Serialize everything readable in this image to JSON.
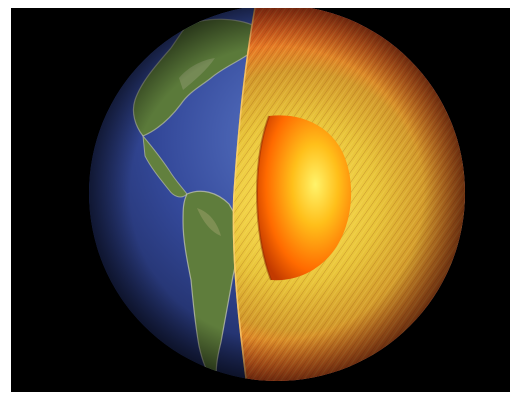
{
  "image": {
    "subject": "earth-interior-cutaway",
    "colors": {
      "background": "#000000",
      "ocean": "#2c3f86",
      "land": "#5d7a3e",
      "mantle_outer": "#ff3a12",
      "mantle_inner": "#d8b02a",
      "core": "#ff7a00"
    }
  }
}
